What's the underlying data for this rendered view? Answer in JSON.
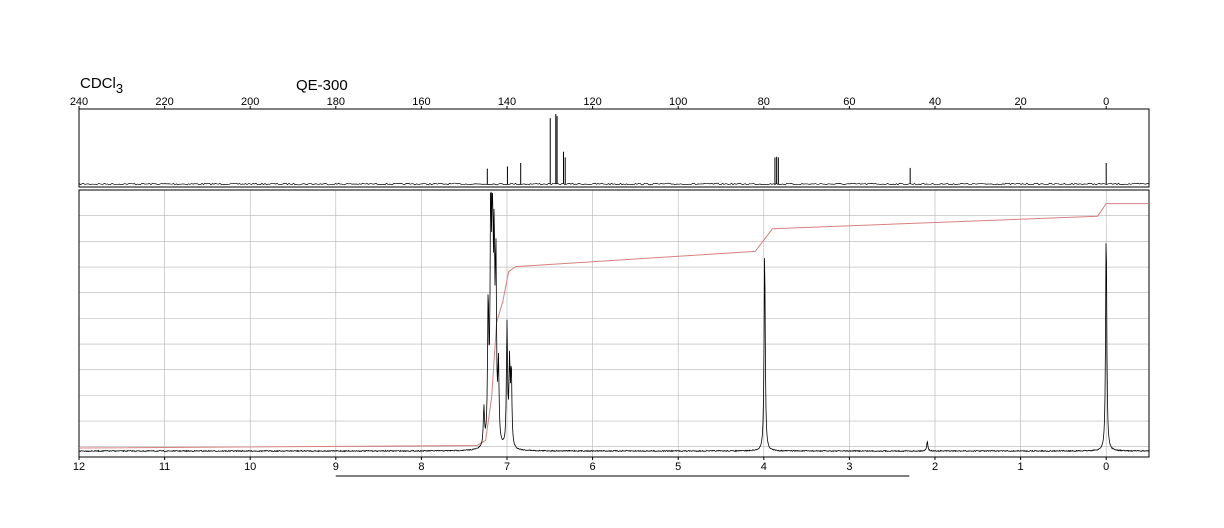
{
  "header": {
    "solvent_base": "CDCl",
    "solvent_sub": "3",
    "instrument": "QE-300"
  },
  "colors": {
    "spectrum": "#000000",
    "integral": "#d98080",
    "grid": "#b4b4b4",
    "frame": "#000000"
  },
  "chart_data": [
    {
      "type": "line",
      "title": "",
      "xlabel": "",
      "ylabel": "",
      "nucleus": "13C",
      "xlim": [
        240,
        -10
      ],
      "x_reversed": true,
      "x_ticks": [
        "240",
        "220",
        "200",
        "180",
        "160",
        "140",
        "120",
        "100",
        "80",
        "60",
        "40",
        "20",
        "0"
      ],
      "x_tick_values": [
        240,
        220,
        200,
        180,
        160,
        140,
        120,
        100,
        80,
        60,
        40,
        20,
        0
      ],
      "grid": false,
      "peaks": [
        {
          "ppm": 144.6,
          "height": 0.22
        },
        {
          "ppm": 139.9,
          "height": 0.25
        },
        {
          "ppm": 136.8,
          "height": 0.3
        },
        {
          "ppm": 129.9,
          "height": 0.94
        },
        {
          "ppm": 128.6,
          "height": 1.0
        },
        {
          "ppm": 128.3,
          "height": 0.97
        },
        {
          "ppm": 126.8,
          "height": 0.46
        },
        {
          "ppm": 126.4,
          "height": 0.38
        },
        {
          "ppm": 77.4,
          "height": 0.38
        },
        {
          "ppm": 77.0,
          "height": 0.39
        },
        {
          "ppm": 76.6,
          "height": 0.38
        },
        {
          "ppm": 45.8,
          "height": 0.23
        },
        {
          "ppm": 0.0,
          "height": 0.3
        }
      ]
    },
    {
      "type": "line",
      "title": "",
      "xlabel": "",
      "ylabel": "",
      "nucleus": "1H",
      "xlim": [
        12,
        -0.5
      ],
      "x_reversed": true,
      "x_ticks": [
        "12",
        "11",
        "10",
        "9",
        "8",
        "7",
        "6",
        "5",
        "4",
        "3",
        "2",
        "1",
        "0"
      ],
      "x_tick_values": [
        12,
        11,
        10,
        9,
        8,
        7,
        6,
        5,
        4,
        3,
        2,
        1,
        0
      ],
      "grid": true,
      "peaks": [
        {
          "ppm": 7.27,
          "height": 0.15
        },
        {
          "ppm": 7.22,
          "height": 0.55
        },
        {
          "ppm": 7.19,
          "height": 0.98
        },
        {
          "ppm": 7.17,
          "height": 1.0
        },
        {
          "ppm": 7.15,
          "height": 0.69
        },
        {
          "ppm": 7.13,
          "height": 0.7
        },
        {
          "ppm": 7.1,
          "height": 0.3
        },
        {
          "ppm": 7.0,
          "height": 0.48
        },
        {
          "ppm": 6.97,
          "height": 0.32
        },
        {
          "ppm": 6.95,
          "height": 0.3
        },
        {
          "ppm": 3.99,
          "height": 0.8
        },
        {
          "ppm": 2.09,
          "height": 0.04
        },
        {
          "ppm": 0.0,
          "height": 0.89
        }
      ],
      "integral_curve": [
        {
          "ppm": 12.0,
          "level": 0.0
        },
        {
          "ppm": 7.35,
          "level": 0.01
        },
        {
          "ppm": 7.25,
          "level": 0.03
        },
        {
          "ppm": 7.18,
          "level": 0.2
        },
        {
          "ppm": 7.12,
          "level": 0.5
        },
        {
          "ppm": 7.05,
          "level": 0.58
        },
        {
          "ppm": 6.98,
          "level": 0.7
        },
        {
          "ppm": 6.9,
          "level": 0.72
        },
        {
          "ppm": 4.1,
          "level": 0.78
        },
        {
          "ppm": 3.9,
          "level": 0.87
        },
        {
          "ppm": 0.1,
          "level": 0.92
        },
        {
          "ppm": 0.0,
          "level": 0.97
        },
        {
          "ppm": -0.5,
          "level": 0.97
        }
      ],
      "reference_bar": {
        "from_ppm": 9.0,
        "to_ppm": 2.3
      }
    }
  ]
}
